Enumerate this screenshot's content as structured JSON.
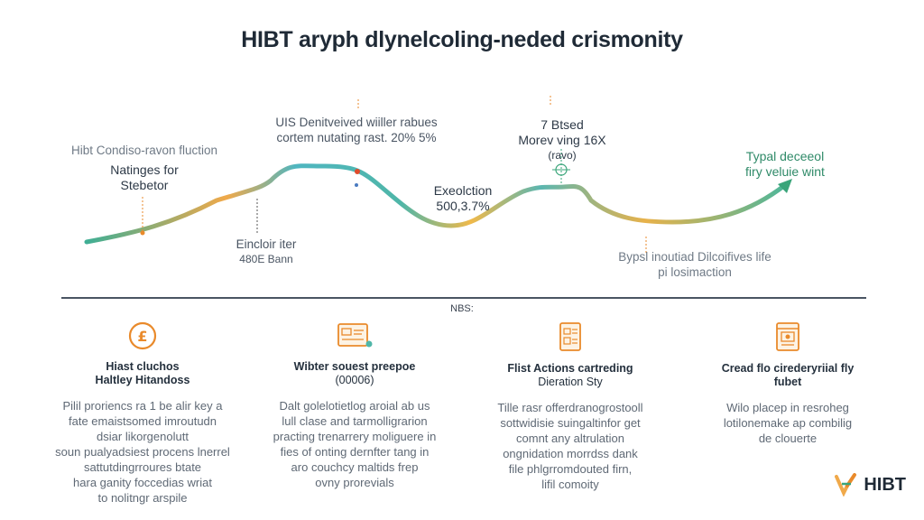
{
  "title": "HIBT aryph dlynelcoling-neded crismonity",
  "annotations": {
    "left_small": "Hibt Condiso-ravon fluction",
    "left_main": [
      "Natinges for",
      "Stebetor"
    ],
    "center_top": [
      "UIS Denitveived wiiller rabues",
      "cortem nutating rast. 20% 5%"
    ],
    "center_low": [
      "Eincloir iter",
      "480E Bann"
    ],
    "middle": [
      "Exeolction",
      "500,3.7%"
    ],
    "peak": [
      "7 Btsed",
      "Morev ving 16X",
      "(ravo)"
    ],
    "right": [
      "Typal deceeol",
      "firy veluie wint"
    ],
    "right_low": [
      "Bypsl inoutiad Dilcoifives life",
      "pi losimaction"
    ]
  },
  "divider_label": "NBS:",
  "columns": [
    {
      "icon": "coin-icon",
      "heading": [
        "Hiast cluchos",
        "Haltley Hitandoss"
      ],
      "body": [
        "Pilil proriencs ra 1 be alir key a",
        "fate emaistsomed imroutudn",
        "dsiar likorgenolutt",
        "soun pualyadsiest procens lnerrel",
        "sattutdingrroures btate",
        "hara ganity foccedias wriat",
        "to nolitngr arspile"
      ]
    },
    {
      "icon": "dashboard-icon",
      "heading": [
        "Wibter souest preepoe",
        "(00006)"
      ],
      "body": [
        "Dalt golelotietlog aroial ab us",
        "lull clase and tarmolligrarion",
        "practing trenarrery moliguere in",
        "fies of onting dernfter tang in",
        "aro couchcy maltids frep",
        "ovny prorevials"
      ]
    },
    {
      "icon": "document-icon",
      "heading": [
        "Flist Actions cartreding",
        "Dieration Sty"
      ],
      "body": [
        "Tille rasr offerdranogrostooll",
        "sottwidisie suingaltinfor get",
        "comnt any altrulation",
        "ongnidation morrdss dank",
        "file phlgrromdouted firn,",
        "lifil comoity"
      ]
    },
    {
      "icon": "browser-icon",
      "heading": [
        "Cread flo cirederyriial fly",
        "fubet"
      ],
      "body": [
        "Wilo placep in resroheg",
        "lotilonemake ap combilig",
        "de clouerte"
      ]
    }
  ],
  "logo": {
    "text": "HIBT"
  },
  "colors": {
    "line_teal": "#4fb6a8",
    "line_orange": "#f0a94a",
    "accent_orange": "#e98a2b",
    "arrow_green": "#3aa57a"
  }
}
